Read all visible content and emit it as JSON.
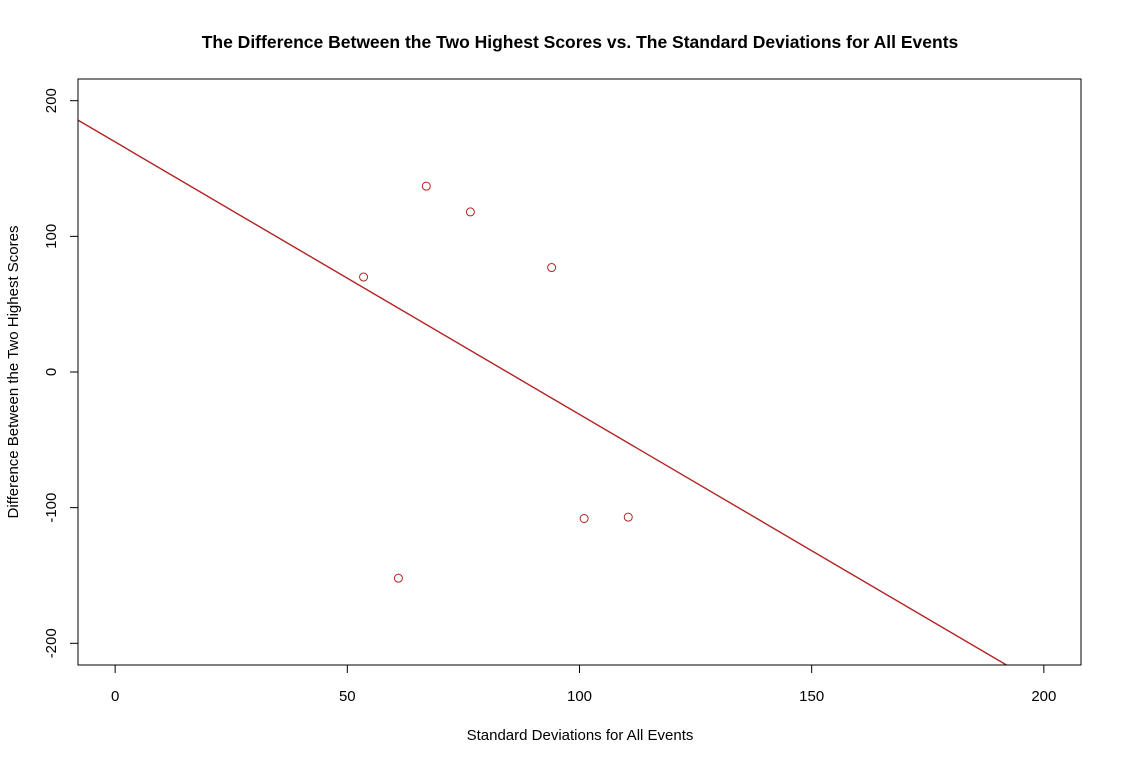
{
  "chart_data": {
    "type": "scatter",
    "title": "The Difference Between the Two Highest Scores vs. The Standard Deviations for All Events",
    "xlabel": "Standard Deviations for All Events",
    "ylabel": "Difference Between the Two Highest Scores",
    "xlim": [
      -8,
      208
    ],
    "ylim": [
      -216,
      216
    ],
    "x_ticks": [
      0,
      50,
      100,
      150,
      200
    ],
    "y_ticks": [
      -200,
      -100,
      0,
      100,
      200
    ],
    "x_tick_labels": [
      "0",
      "50",
      "100",
      "150",
      "200"
    ],
    "y_tick_labels": [
      "-200",
      "-100",
      "0",
      "100",
      "200"
    ],
    "points": [
      {
        "x": 53.5,
        "y": 70
      },
      {
        "x": 61,
        "y": -152
      },
      {
        "x": 67,
        "y": 137
      },
      {
        "x": 76.5,
        "y": 118
      },
      {
        "x": 94,
        "y": 77
      },
      {
        "x": 101,
        "y": -108
      },
      {
        "x": 110.5,
        "y": -107
      }
    ],
    "regression_line": {
      "intercept": 169.6,
      "slope": -2.0088
    },
    "point_color": "#b22222",
    "line_color": "#b22222",
    "grid": false,
    "legend": "none",
    "marker": "open-circle"
  }
}
